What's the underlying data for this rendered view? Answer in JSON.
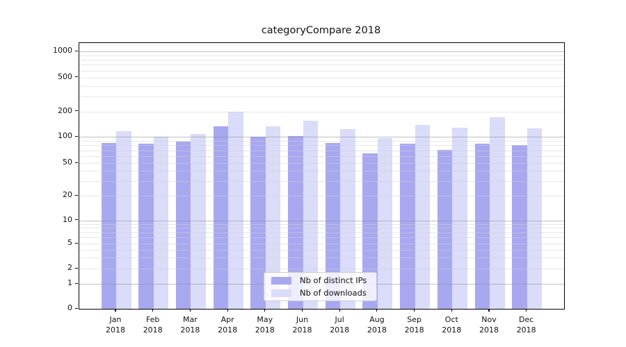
{
  "chart_data": {
    "type": "bar",
    "title": "categoryCompare 2018",
    "year_label": "2018",
    "categories": [
      "Jan",
      "Feb",
      "Mar",
      "Apr",
      "May",
      "Jun",
      "Jul",
      "Aug",
      "Sep",
      "Oct",
      "Nov",
      "Dec"
    ],
    "series": [
      {
        "name": "Nb of distinct IPs",
        "color": "#a8a8f0",
        "values": [
          85,
          84,
          88,
          133,
          100,
          102,
          86,
          65,
          83,
          71,
          84,
          80
        ]
      },
      {
        "name": "Nb of downloads",
        "color": "#dbdbfa",
        "values": [
          118,
          100,
          108,
          200,
          135,
          155,
          123,
          97,
          139,
          129,
          171,
          126
        ]
      }
    ],
    "yscale": "symlog",
    "y_ticks": [
      0,
      1,
      2,
      5,
      10,
      20,
      50,
      100,
      200,
      500,
      1000
    ],
    "ylim": [
      0,
      1250
    ],
    "grid": true,
    "legend_position": "lower center",
    "colors": {
      "major_grid": "#b0b0b0",
      "minor_grid": "#e7e7e7",
      "axis": "#000000",
      "background": "#ffffff"
    }
  }
}
